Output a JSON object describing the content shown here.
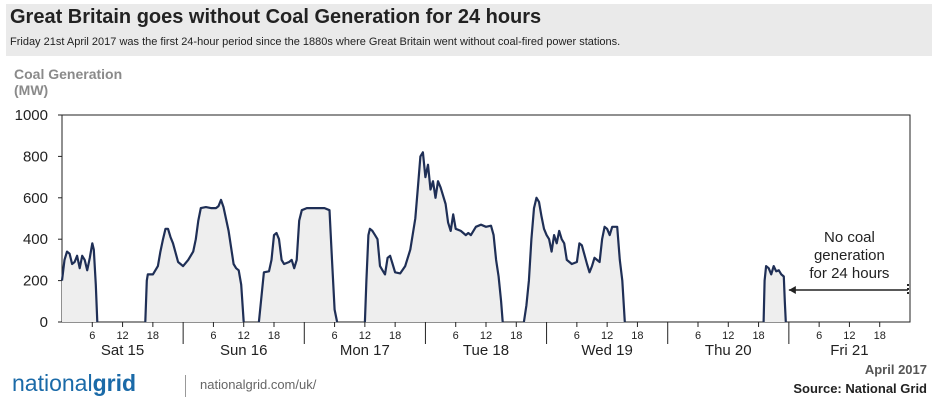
{
  "header": {
    "title": "Great Britain goes without Coal Generation for 24 hours",
    "subtitle": "Friday 21st April 2017 was the first 24-hour period since the 1880s where Great Britain went without coal-fired power stations."
  },
  "chart_data": {
    "type": "area",
    "title": "Great Britain goes without Coal Generation for 24 hours",
    "ylabel_line1": "Coal Generation",
    "ylabel_line2": "(MW)",
    "xlabel": "",
    "ylim": [
      0,
      1000
    ],
    "yticks": [
      "0",
      "200",
      "400",
      "600",
      "800",
      "1000"
    ],
    "ytick_values": [
      0,
      200,
      400,
      600,
      800,
      1000
    ],
    "xlim_hours": [
      0,
      168
    ],
    "hour_ticks": [
      "6",
      "12",
      "18"
    ],
    "days": [
      "Sat 15",
      "Sun 16",
      "Mon 17",
      "Tue 18",
      "Wed 19",
      "Thu 20",
      "Fri 21"
    ],
    "annotation": {
      "text_lines": [
        "No coal",
        "generation",
        "for 24 hours"
      ],
      "from_hour": 144,
      "to_hour": 168
    },
    "colors": {
      "line": "#1f2f56",
      "fill": "#eeeeee",
      "axis": "#222222"
    },
    "series": [
      {
        "name": "Coal Generation (MW)",
        "segments": [
          [
            [
              0,
              200
            ],
            [
              0.5,
              300
            ],
            [
              1,
              340
            ],
            [
              1.5,
              330
            ],
            [
              2,
              280
            ],
            [
              2.5,
              290
            ],
            [
              3,
              320
            ],
            [
              3.5,
              260
            ],
            [
              4,
              320
            ],
            [
              4.5,
              300
            ],
            [
              5,
              250
            ],
            [
              5.5,
              310
            ],
            [
              6,
              380
            ],
            [
              6.3,
              350
            ],
            [
              6.7,
              180
            ],
            [
              7,
              0
            ]
          ],
          [
            [
              16.5,
              0
            ],
            [
              16.8,
              200
            ],
            [
              17,
              230
            ],
            [
              18,
              230
            ],
            [
              19,
              270
            ],
            [
              19.5,
              340
            ],
            [
              20,
              400
            ],
            [
              20.5,
              450
            ],
            [
              21,
              450
            ],
            [
              21.5,
              410
            ],
            [
              22,
              380
            ],
            [
              23,
              290
            ],
            [
              24,
              270
            ],
            [
              25,
              300
            ],
            [
              26,
              340
            ],
            [
              26.5,
              400
            ],
            [
              27,
              490
            ],
            [
              27.5,
              550
            ],
            [
              28.5,
              555
            ],
            [
              29.5,
              550
            ],
            [
              30.5,
              550
            ],
            [
              31,
              560
            ],
            [
              31.5,
              590
            ],
            [
              32,
              555
            ],
            [
              33,
              440
            ],
            [
              34,
              280
            ],
            [
              34.5,
              260
            ],
            [
              35,
              250
            ],
            [
              35.5,
              180
            ],
            [
              36,
              0
            ]
          ],
          [
            [
              39,
              0
            ],
            [
              39.5,
              120
            ],
            [
              40,
              240
            ],
            [
              41,
              245
            ],
            [
              41.5,
              300
            ],
            [
              42,
              420
            ],
            [
              42.5,
              430
            ],
            [
              43,
              400
            ],
            [
              43.5,
              300
            ],
            [
              44,
              280
            ],
            [
              45,
              290
            ],
            [
              45.5,
              300
            ],
            [
              46,
              260
            ],
            [
              46.5,
              300
            ],
            [
              47,
              490
            ],
            [
              47.5,
              540
            ],
            [
              48.5,
              550
            ],
            [
              50,
              550
            ],
            [
              52,
              550
            ],
            [
              53,
              540
            ],
            [
              53.5,
              300
            ],
            [
              54,
              60
            ],
            [
              54.5,
              0
            ]
          ],
          [
            [
              60,
              0
            ],
            [
              60.3,
              200
            ],
            [
              60.7,
              420
            ],
            [
              61,
              450
            ],
            [
              61.5,
              440
            ],
            [
              62,
              420
            ],
            [
              62.5,
              400
            ],
            [
              63,
              270
            ],
            [
              63.5,
              250
            ],
            [
              64,
              230
            ],
            [
              64.5,
              310
            ],
            [
              65,
              320
            ],
            [
              65.5,
              280
            ],
            [
              66,
              240
            ],
            [
              67,
              235
            ],
            [
              68,
              270
            ],
            [
              69,
              350
            ],
            [
              70,
              500
            ],
            [
              70.5,
              650
            ],
            [
              71,
              800
            ],
            [
              71.5,
              820
            ],
            [
              72,
              700
            ],
            [
              72.5,
              760
            ],
            [
              73,
              640
            ],
            [
              73.5,
              680
            ],
            [
              74,
              600
            ],
            [
              74.5,
              680
            ],
            [
              75,
              650
            ],
            [
              76,
              570
            ],
            [
              76.5,
              480
            ],
            [
              77,
              440
            ],
            [
              77.5,
              520
            ],
            [
              78,
              450
            ],
            [
              79,
              440
            ],
            [
              80,
              420
            ],
            [
              80.5,
              430
            ],
            [
              81,
              420
            ],
            [
              82,
              460
            ],
            [
              83,
              470
            ],
            [
              84,
              460
            ],
            [
              85,
              465
            ],
            [
              85.5,
              420
            ],
            [
              86,
              300
            ],
            [
              86.5,
              220
            ],
            [
              87,
              100
            ],
            [
              87.3,
              0
            ]
          ],
          [
            [
              91.5,
              0
            ],
            [
              92,
              80
            ],
            [
              92.5,
              200
            ],
            [
              93,
              400
            ],
            [
              93.5,
              550
            ],
            [
              94,
              600
            ],
            [
              94.5,
              580
            ],
            [
              95,
              510
            ],
            [
              95.5,
              450
            ],
            [
              96,
              420
            ],
            [
              96.5,
              400
            ],
            [
              97,
              340
            ],
            [
              97.5,
              420
            ],
            [
              98,
              380
            ],
            [
              98.5,
              440
            ],
            [
              99,
              400
            ],
            [
              99.5,
              380
            ],
            [
              100,
              300
            ],
            [
              101,
              280
            ],
            [
              102,
              290
            ],
            [
              102.5,
              380
            ],
            [
              103,
              370
            ],
            [
              104,
              280
            ],
            [
              104.5,
              240
            ],
            [
              105,
              270
            ],
            [
              105.5,
              310
            ],
            [
              106,
              300
            ],
            [
              106.5,
              290
            ],
            [
              107,
              400
            ],
            [
              107.5,
              460
            ],
            [
              108,
              450
            ],
            [
              108.5,
              420
            ],
            [
              109,
              460
            ],
            [
              110,
              460
            ],
            [
              110.5,
              300
            ],
            [
              111,
              200
            ],
            [
              111.5,
              0
            ]
          ],
          [
            [
              139,
              0
            ],
            [
              139.2,
              200
            ],
            [
              139.5,
              270
            ],
            [
              140,
              260
            ],
            [
              140.5,
              230
            ],
            [
              141,
              270
            ],
            [
              141.5,
              245
            ],
            [
              142,
              250
            ],
            [
              142.5,
              230
            ],
            [
              143,
              220
            ],
            [
              143.2,
              100
            ],
            [
              143.4,
              0
            ]
          ]
        ]
      }
    ]
  },
  "footer": {
    "logo_light": "national",
    "logo_bold": "grid",
    "url": "nationalgrid.com/uk/",
    "date": "April 2017",
    "source": "Source: National Grid"
  }
}
